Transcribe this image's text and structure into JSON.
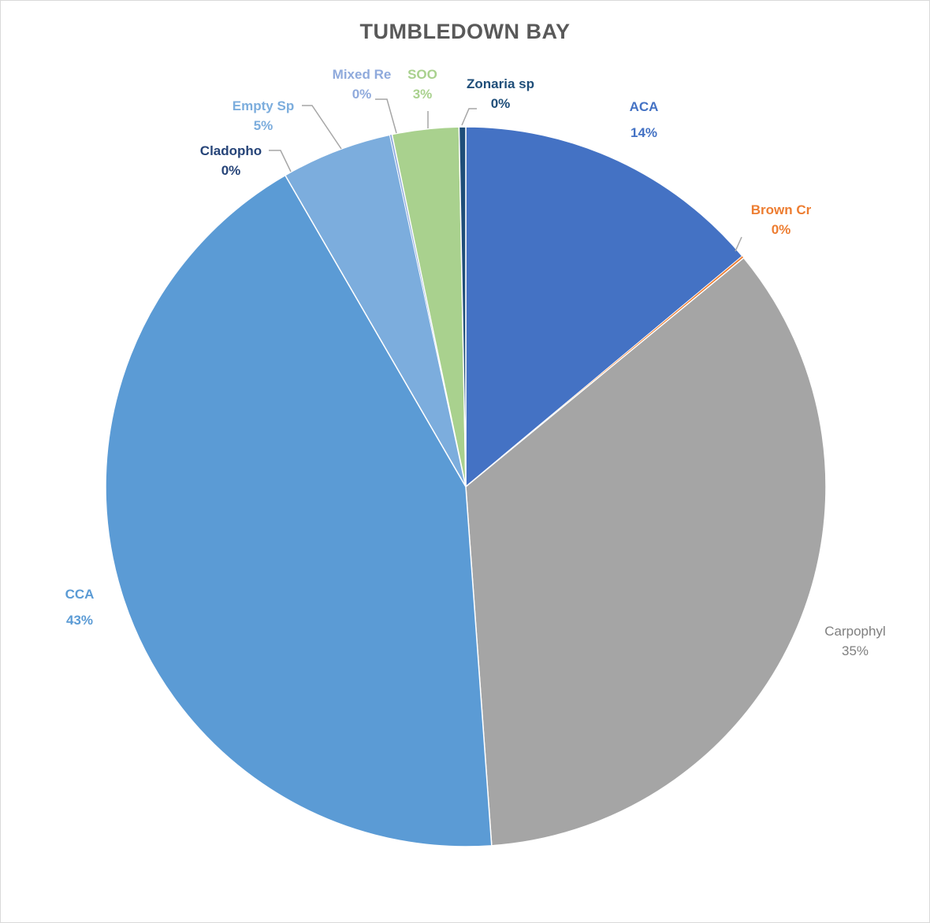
{
  "chart_data": {
    "type": "pie",
    "title": "TUMBLEDOWN BAY",
    "slices": [
      {
        "name": "ACA",
        "value": 14,
        "label": "14%",
        "color": "#4472c4"
      },
      {
        "name": "Brown Cr",
        "value": 0.1,
        "label": "0%",
        "color": "#ed7d31"
      },
      {
        "name": "Carpophyl",
        "value": 35,
        "label": "35%",
        "color": "#a5a5a5"
      },
      {
        "name": "CCA",
        "value": 43,
        "label": "43%",
        "color": "#5b9bd5"
      },
      {
        "name": "Cladopho",
        "value": 0,
        "label": "0%",
        "color": "#264478"
      },
      {
        "name": "Empty Sp",
        "value": 5,
        "label": "5%",
        "color": "#7caddd"
      },
      {
        "name": "Mixed Re",
        "value": 0.1,
        "label": "0%",
        "color": "#8faadc"
      },
      {
        "name": "SOO",
        "value": 3,
        "label": "3%",
        "color": "#a9d18e"
      },
      {
        "name": "Zonaria sp",
        "value": 0.3,
        "label": "0%",
        "color": "#1f4e79"
      }
    ],
    "legend": "none"
  }
}
